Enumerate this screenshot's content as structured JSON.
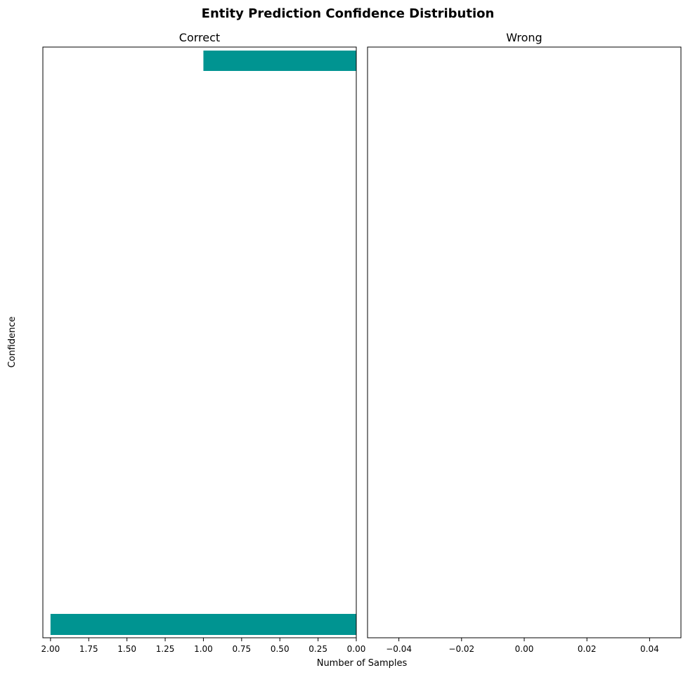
{
  "title": "Entity Prediction Confidence Distribution",
  "ylabel": "Confidence",
  "xlabel": "Number of Samples",
  "colors": {
    "bar": "#009491",
    "frame": "#000000"
  },
  "chart_data": [
    {
      "type": "bar",
      "orientation": "horizontal",
      "title": "Correct",
      "xlim": [
        2.05,
        0.0
      ],
      "x_inverted": true,
      "xticks": [
        2.0,
        1.75,
        1.5,
        1.25,
        1.0,
        0.75,
        0.5,
        0.25,
        0.0
      ],
      "xtick_labels": [
        "2.00",
        "1.75",
        "1.50",
        "1.25",
        "1.00",
        "0.75",
        "0.50",
        "0.25",
        "0.00"
      ],
      "bars": [
        {
          "position": "top",
          "value": 1
        },
        {
          "position": "bottom",
          "value": 2
        }
      ]
    },
    {
      "type": "bar",
      "orientation": "horizontal",
      "title": "Wrong",
      "xlim": [
        -0.05,
        0.05
      ],
      "xticks": [
        -0.04,
        -0.02,
        0.0,
        0.02,
        0.04
      ],
      "xtick_labels": [
        "−0.04",
        "−0.02",
        "0.00",
        "0.02",
        "0.04"
      ],
      "bars": []
    }
  ]
}
